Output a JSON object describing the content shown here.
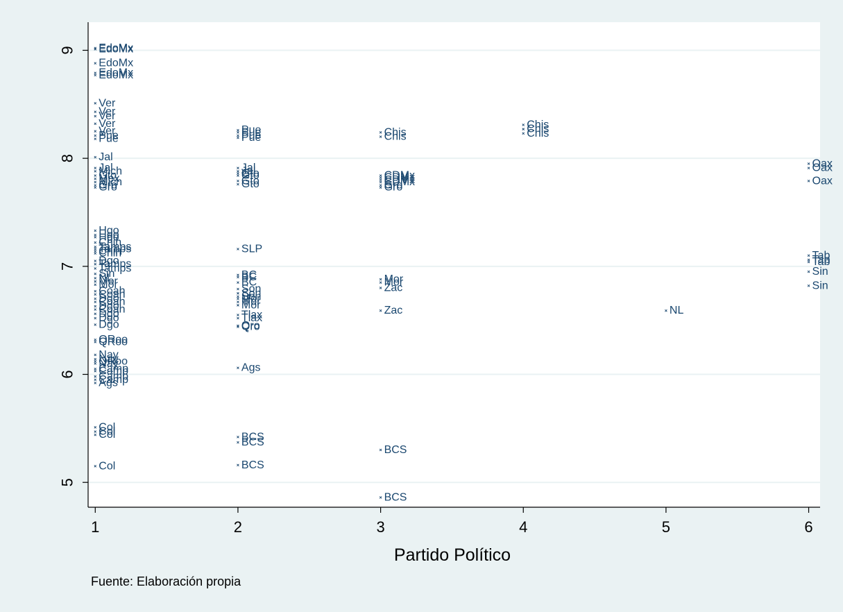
{
  "chart_data": {
    "type": "scatter",
    "xlabel": "Partido Político",
    "ylabel": "",
    "note": "Fuente: Elaboración propia",
    "xlim": [
      0.95,
      6.08
    ],
    "ylim": [
      4.77,
      9.26
    ],
    "x_ticks": [
      1,
      2,
      3,
      4,
      5,
      6
    ],
    "y_ticks": [
      5,
      6,
      7,
      8,
      9
    ],
    "grid": true,
    "legend": "none",
    "marker_color": "#1a476f",
    "points": [
      {
        "x": 1,
        "y": 9.02,
        "label": "EdoMx"
      },
      {
        "x": 1,
        "y": 9.01,
        "label": "EdoMx"
      },
      {
        "x": 1,
        "y": 8.88,
        "label": "EdoMx"
      },
      {
        "x": 1,
        "y": 8.79,
        "label": "EdoMx"
      },
      {
        "x": 1,
        "y": 8.77,
        "label": "EdoMx"
      },
      {
        "x": 1,
        "y": 8.51,
        "label": "Ver"
      },
      {
        "x": 1,
        "y": 8.43,
        "label": "Ver"
      },
      {
        "x": 1,
        "y": 8.39,
        "label": "Ver"
      },
      {
        "x": 1,
        "y": 8.32,
        "label": "Ver"
      },
      {
        "x": 1,
        "y": 8.25,
        "label": "Ver"
      },
      {
        "x": 1,
        "y": 8.21,
        "label": "Pue"
      },
      {
        "x": 1,
        "y": 8.18,
        "label": "Pue"
      },
      {
        "x": 1,
        "y": 8.01,
        "label": "Jal"
      },
      {
        "x": 1,
        "y": 7.91,
        "label": "Jal"
      },
      {
        "x": 1,
        "y": 7.88,
        "label": "Mich"
      },
      {
        "x": 1,
        "y": 7.84,
        "label": "Gto"
      },
      {
        "x": 1,
        "y": 7.81,
        "label": "Mex"
      },
      {
        "x": 1,
        "y": 7.78,
        "label": "Mich"
      },
      {
        "x": 1,
        "y": 7.75,
        "label": "Gro"
      },
      {
        "x": 1,
        "y": 7.73,
        "label": "Gro"
      },
      {
        "x": 1,
        "y": 7.33,
        "label": "Hgo"
      },
      {
        "x": 1,
        "y": 7.29,
        "label": "Hgo"
      },
      {
        "x": 1,
        "y": 7.27,
        "label": "Hgo"
      },
      {
        "x": 1,
        "y": 7.22,
        "label": "Chih"
      },
      {
        "x": 1,
        "y": 7.18,
        "label": "Tamps"
      },
      {
        "x": 1,
        "y": 7.16,
        "label": "Tamps"
      },
      {
        "x": 1,
        "y": 7.14,
        "label": "Chih"
      },
      {
        "x": 1,
        "y": 7.12,
        "label": "Chih"
      },
      {
        "x": 1,
        "y": 7.05,
        "label": "Dgo"
      },
      {
        "x": 1,
        "y": 7.02,
        "label": "Tamps"
      },
      {
        "x": 1,
        "y": 6.98,
        "label": "Tamps"
      },
      {
        "x": 1,
        "y": 6.93,
        "label": "Sin"
      },
      {
        "x": 1,
        "y": 6.89,
        "label": "NL"
      },
      {
        "x": 1,
        "y": 6.86,
        "label": "Mor"
      },
      {
        "x": 1,
        "y": 6.83,
        "label": "Mor"
      },
      {
        "x": 1,
        "y": 6.77,
        "label": "Coah"
      },
      {
        "x": 1,
        "y": 6.74,
        "label": "Coah"
      },
      {
        "x": 1,
        "y": 6.7,
        "label": "Dgo"
      },
      {
        "x": 1,
        "y": 6.67,
        "label": "Coah"
      },
      {
        "x": 1,
        "y": 6.63,
        "label": "Dgo"
      },
      {
        "x": 1,
        "y": 6.6,
        "label": "Coah"
      },
      {
        "x": 1,
        "y": 6.56,
        "label": "Dgo"
      },
      {
        "x": 1,
        "y": 6.52,
        "label": "Dgo"
      },
      {
        "x": 1,
        "y": 6.46,
        "label": "Dgo"
      },
      {
        "x": 1,
        "y": 6.32,
        "label": "QRoo"
      },
      {
        "x": 1,
        "y": 6.3,
        "label": "QRoo"
      },
      {
        "x": 1,
        "y": 6.18,
        "label": "Nay"
      },
      {
        "x": 1,
        "y": 6.14,
        "label": "Nay"
      },
      {
        "x": 1,
        "y": 6.12,
        "label": "QRoo"
      },
      {
        "x": 1,
        "y": 6.1,
        "label": "Nay"
      },
      {
        "x": 1,
        "y": 6.05,
        "label": "Camp"
      },
      {
        "x": 1,
        "y": 6.03,
        "label": "Camp"
      },
      {
        "x": 1,
        "y": 5.98,
        "label": "Camp"
      },
      {
        "x": 1,
        "y": 5.95,
        "label": "Camp"
      },
      {
        "x": 1,
        "y": 5.92,
        "label": "Ags"
      },
      {
        "x": 1,
        "y": 5.51,
        "label": "Col"
      },
      {
        "x": 1,
        "y": 5.47,
        "label": "Col"
      },
      {
        "x": 1,
        "y": 5.44,
        "label": "Col"
      },
      {
        "x": 1,
        "y": 5.15,
        "label": "Col"
      },
      {
        "x": 2,
        "y": 8.26,
        "label": "Pue"
      },
      {
        "x": 2,
        "y": 8.24,
        "label": "Pue"
      },
      {
        "x": 2,
        "y": 8.21,
        "label": "Pue"
      },
      {
        "x": 2,
        "y": 8.19,
        "label": "Pue"
      },
      {
        "x": 2,
        "y": 7.91,
        "label": "Jal"
      },
      {
        "x": 2,
        "y": 7.88,
        "label": "Jal"
      },
      {
        "x": 2,
        "y": 7.86,
        "label": "Gto"
      },
      {
        "x": 2,
        "y": 7.84,
        "label": "Gto"
      },
      {
        "x": 2,
        "y": 7.79,
        "label": "Gto"
      },
      {
        "x": 2,
        "y": 7.76,
        "label": "Gto"
      },
      {
        "x": 2,
        "y": 7.16,
        "label": "SLP"
      },
      {
        "x": 2,
        "y": 6.92,
        "label": "BC"
      },
      {
        "x": 2,
        "y": 6.9,
        "label": "BC"
      },
      {
        "x": 2,
        "y": 6.85,
        "label": "BC"
      },
      {
        "x": 2,
        "y": 6.79,
        "label": "Son"
      },
      {
        "x": 2,
        "y": 6.75,
        "label": "Son"
      },
      {
        "x": 2,
        "y": 6.72,
        "label": "Son"
      },
      {
        "x": 2,
        "y": 6.7,
        "label": "Mor"
      },
      {
        "x": 2,
        "y": 6.67,
        "label": "Mor"
      },
      {
        "x": 2,
        "y": 6.64,
        "label": "Mor"
      },
      {
        "x": 2,
        "y": 6.55,
        "label": "Tlax"
      },
      {
        "x": 2,
        "y": 6.52,
        "label": "Tlax"
      },
      {
        "x": 2,
        "y": 6.45,
        "label": "Qro"
      },
      {
        "x": 2,
        "y": 6.44,
        "label": "Qro"
      },
      {
        "x": 2,
        "y": 6.06,
        "label": "Ags"
      },
      {
        "x": 2,
        "y": 5.42,
        "label": "BCS"
      },
      {
        "x": 2,
        "y": 5.37,
        "label": "BCS"
      },
      {
        "x": 2,
        "y": 5.16,
        "label": "BCS"
      },
      {
        "x": 3,
        "y": 8.24,
        "label": "Chis"
      },
      {
        "x": 3,
        "y": 8.2,
        "label": "Chis"
      },
      {
        "x": 3,
        "y": 7.84,
        "label": "CDMx"
      },
      {
        "x": 3,
        "y": 7.82,
        "label": "CDMx"
      },
      {
        "x": 3,
        "y": 7.8,
        "label": "CDMx"
      },
      {
        "x": 3,
        "y": 7.78,
        "label": "CDMx"
      },
      {
        "x": 3,
        "y": 7.75,
        "label": "Gro"
      },
      {
        "x": 3,
        "y": 7.73,
        "label": "Gro"
      },
      {
        "x": 3,
        "y": 6.88,
        "label": "Mor"
      },
      {
        "x": 3,
        "y": 6.85,
        "label": "Mor"
      },
      {
        "x": 3,
        "y": 6.8,
        "label": "Zac"
      },
      {
        "x": 3,
        "y": 6.59,
        "label": "Zac"
      },
      {
        "x": 3,
        "y": 5.3,
        "label": "BCS"
      },
      {
        "x": 3,
        "y": 4.86,
        "label": "BCS"
      },
      {
        "x": 4,
        "y": 8.31,
        "label": "Chis"
      },
      {
        "x": 4,
        "y": 8.27,
        "label": "Chis"
      },
      {
        "x": 4,
        "y": 8.23,
        "label": "Chis"
      },
      {
        "x": 5,
        "y": 6.59,
        "label": "NL"
      },
      {
        "x": 6,
        "y": 7.95,
        "label": "Oax"
      },
      {
        "x": 6,
        "y": 7.91,
        "label": "Oax"
      },
      {
        "x": 6,
        "y": 7.79,
        "label": "Oax"
      },
      {
        "x": 6,
        "y": 7.1,
        "label": "Tab"
      },
      {
        "x": 6,
        "y": 7.06,
        "label": "Tab"
      },
      {
        "x": 6,
        "y": 7.04,
        "label": "Tab"
      },
      {
        "x": 6,
        "y": 6.95,
        "label": "Sin"
      },
      {
        "x": 6,
        "y": 6.82,
        "label": "Sin"
      }
    ]
  }
}
